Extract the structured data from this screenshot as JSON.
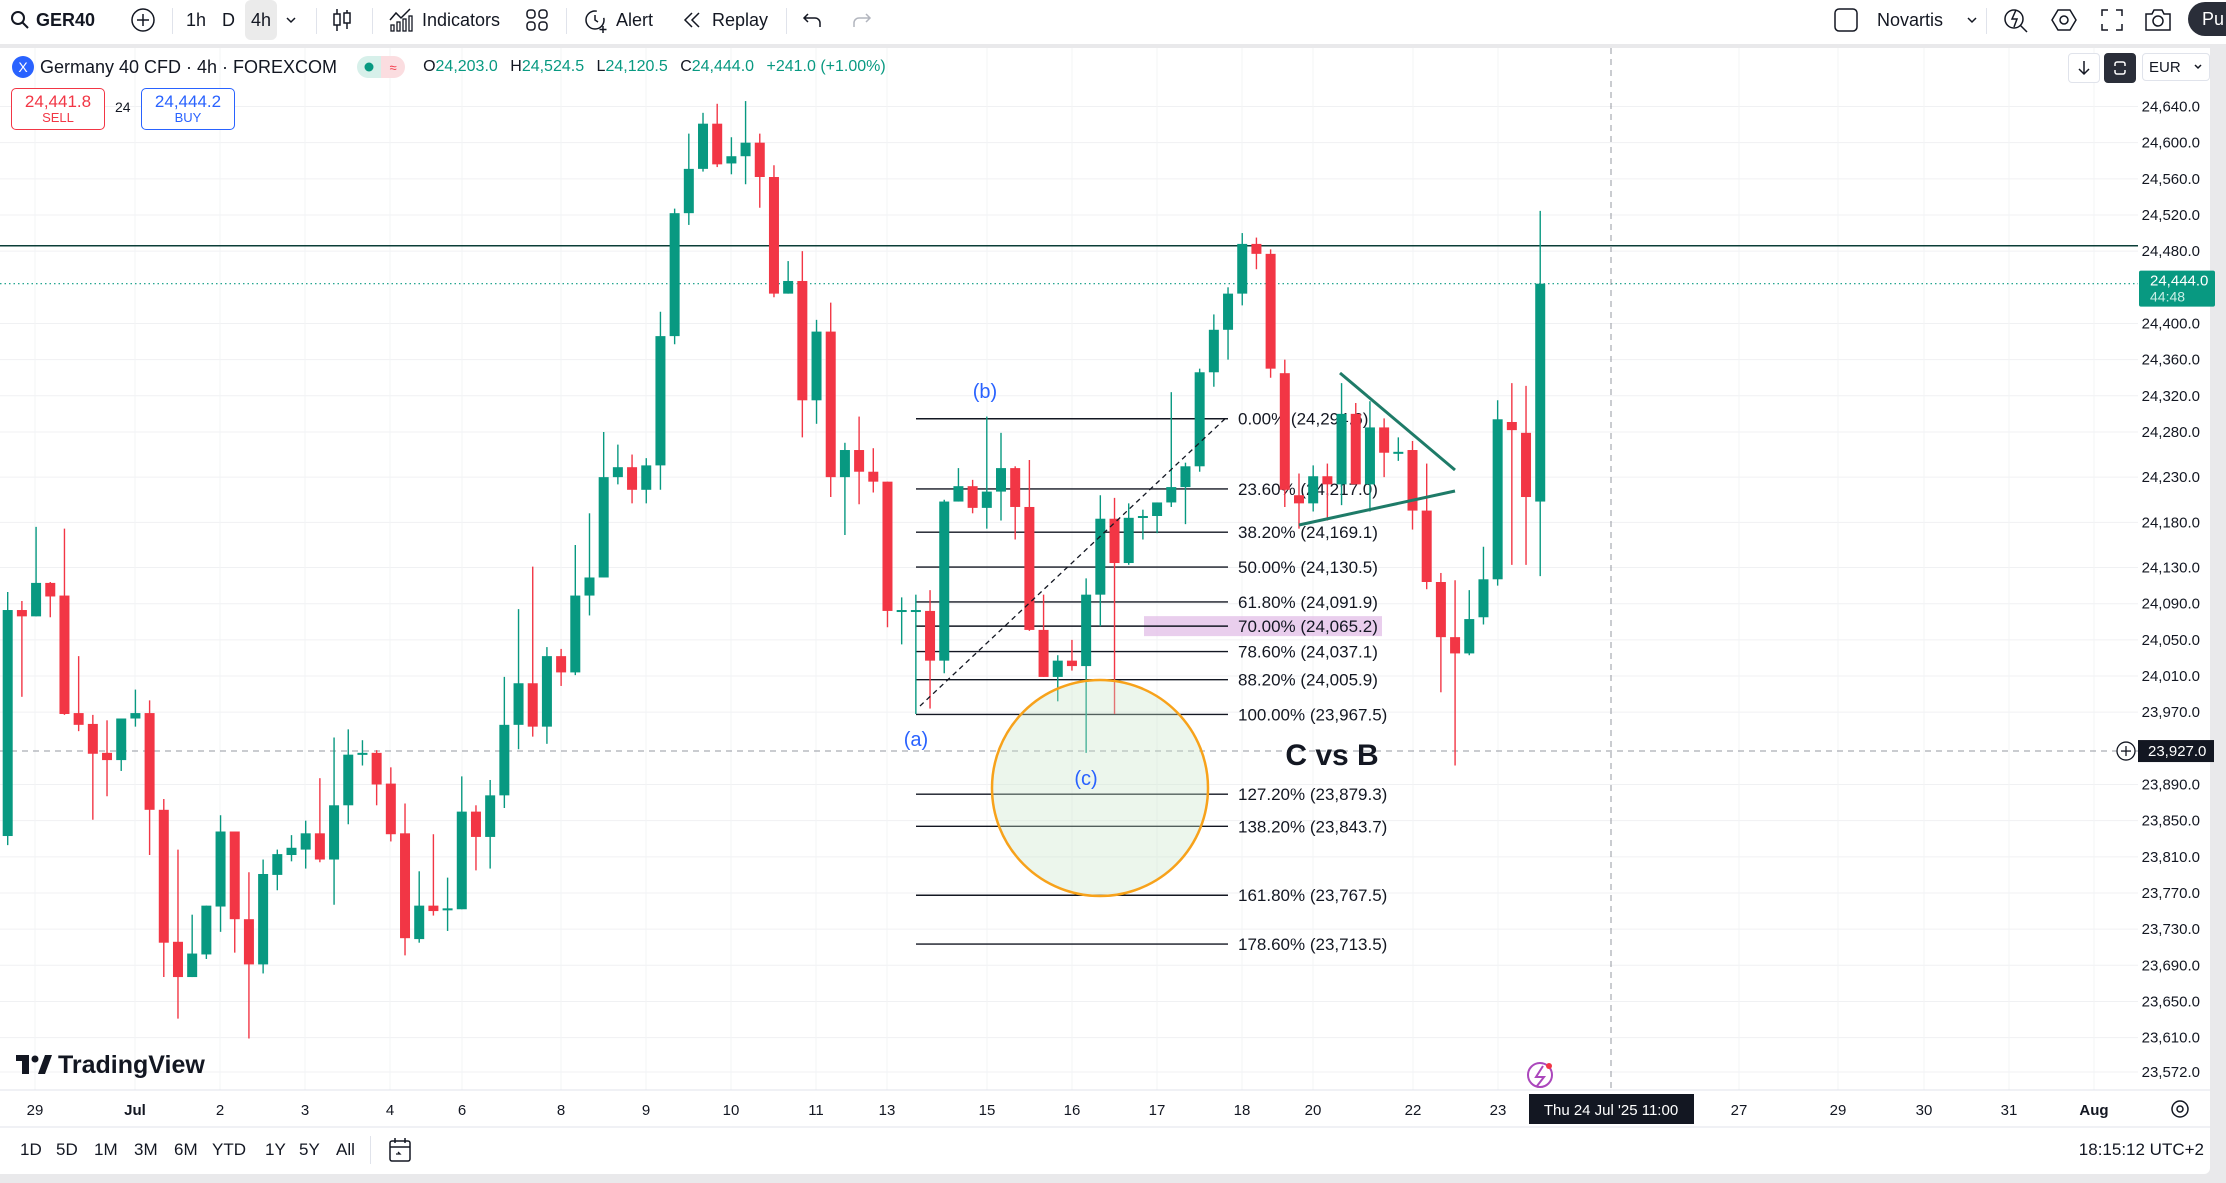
{
  "toolbar": {
    "symbol": "GER40",
    "intervals": [
      "1h",
      "D",
      "4h"
    ],
    "selected_interval": "4h",
    "indicators_label": "Indicators",
    "alert_label": "Alert",
    "replay_label": "Replay",
    "watchlist_label": "Novartis",
    "publish_label": "Pu",
    "icons": [
      "search-icon",
      "add-circle-icon",
      "chevron-down-icon",
      "candles-icon",
      "indicators-icon",
      "layout-grid-icon",
      "alarm-clock-icon",
      "replay-icon",
      "undo-icon",
      "redo-icon",
      "checkbox-icon",
      "quick-search-icon",
      "settings-icon",
      "fullscreen-icon",
      "camera-icon"
    ]
  },
  "legend": {
    "title": "Germany 40 CFD · 4h · FOREXCOM",
    "badge": "X",
    "o_label": "O",
    "o": "24,203.0",
    "h_label": "H",
    "h": "24,524.5",
    "l_label": "L",
    "l": "24,120.5",
    "c_label": "C",
    "c": "24,444.0",
    "change": "+241.0 (+1.00%)",
    "market_pill_icon": "≈"
  },
  "trade": {
    "sell_price": "24,441.8",
    "sell_label": "SELL",
    "spread": "24",
    "buy_price": "24,444.2",
    "buy_label": "BUY"
  },
  "scale_controls": {
    "currency": "EUR"
  },
  "colors": {
    "up": "#089981",
    "down": "#f23645",
    "fib_highlight": "#e1bee7",
    "circle": "#f7a21b",
    "triangle": "#1e7b68",
    "label_blue": "#2962ff"
  },
  "price_axis": {
    "ticks": [
      "24,640.0",
      "24,600.0",
      "24,560.0",
      "24,520.0",
      "24,480.0",
      "24,400.0",
      "24,360.0",
      "24,320.0",
      "24,280.0",
      "24,230.0",
      "24,180.0",
      "24,130.0",
      "24,090.0",
      "24,050.0",
      "24,010.0",
      "23,970.0",
      "23,890.0",
      "23,850.0",
      "23,810.0",
      "23,770.0",
      "23,730.0",
      "23,690.0",
      "23,650.0",
      "23,610.0",
      "23,572.0"
    ],
    "current_price": "24,444.0",
    "countdown": "44:48",
    "crosshair_price": "23,927.0"
  },
  "time_axis": {
    "ticks": [
      "29",
      "Jul",
      "2",
      "3",
      "4",
      "6",
      "8",
      "9",
      "10",
      "11",
      "13",
      "15",
      "16",
      "17",
      "18",
      "20",
      "22",
      "23",
      "27",
      "29",
      "30",
      "31",
      "Aug"
    ],
    "crosshair_time": "Thu 24 Jul '25   11:00"
  },
  "chart_data": {
    "type": "candlestick",
    "ohlc_order": [
      "open",
      "high",
      "low",
      "close"
    ],
    "candles": [
      [
        23833,
        24103,
        23823,
        24083
      ],
      [
        24083,
        24093,
        23987,
        24076
      ],
      [
        24076,
        24175,
        24076,
        24113
      ],
      [
        24113,
        24114,
        24075,
        24098
      ],
      [
        24099,
        24173,
        23967,
        23968
      ],
      [
        23969,
        24032,
        23949,
        23956
      ],
      [
        23957,
        23967,
        23851,
        23924
      ],
      [
        23925,
        23961,
        23877,
        23917
      ],
      [
        23917,
        23963,
        23905,
        23963
      ],
      [
        23963,
        23995,
        23954,
        23969
      ],
      [
        23969,
        23983,
        23812,
        23862
      ],
      [
        23862,
        23874,
        23677,
        23715
      ],
      [
        23716,
        23818,
        23631,
        23677
      ],
      [
        23677,
        23746,
        23677,
        23703
      ],
      [
        23702,
        23756,
        23697,
        23756
      ],
      [
        23755,
        23856,
        23727,
        23838
      ],
      [
        23838,
        23838,
        23704,
        23741
      ],
      [
        23741,
        23793,
        23609,
        23691
      ],
      [
        23691,
        23807,
        23681,
        23791
      ],
      [
        23790,
        23818,
        23773,
        23813
      ],
      [
        23812,
        23834,
        23805,
        23820
      ],
      [
        23818,
        23850,
        23797,
        23836
      ],
      [
        23836,
        23897,
        23804,
        23807
      ],
      [
        23807,
        23942,
        23757,
        23867
      ],
      [
        23867,
        23951,
        23846,
        23923
      ],
      [
        23923,
        23939,
        23911,
        23925
      ],
      [
        23925,
        23928,
        23867,
        23890
      ],
      [
        23891,
        23909,
        23827,
        23835
      ],
      [
        23836,
        23869,
        23701,
        23720
      ],
      [
        23719,
        23794,
        23715,
        23756
      ],
      [
        23756,
        23835,
        23745,
        23750
      ],
      [
        23752,
        23787,
        23728,
        23753
      ],
      [
        23752,
        23899,
        23752,
        23860
      ],
      [
        23860,
        23867,
        23795,
        23832
      ],
      [
        23832,
        23895,
        23797,
        23878
      ],
      [
        23878,
        24009,
        23864,
        23956
      ],
      [
        23956,
        24084,
        23929,
        24002
      ],
      [
        24002,
        24131,
        23943,
        23954
      ],
      [
        23954,
        24042,
        23935,
        24032
      ],
      [
        24032,
        24040,
        23999,
        24014
      ],
      [
        24014,
        24155,
        24011,
        24099
      ],
      [
        24099,
        24190,
        24077,
        24119
      ],
      [
        24119,
        24280,
        24119,
        24230
      ],
      [
        24230,
        24266,
        24222,
        24241
      ],
      [
        24241,
        24255,
        24201,
        24216
      ],
      [
        24216,
        24251,
        24201,
        24243
      ],
      [
        24243,
        24413,
        24216,
        24386
      ],
      [
        24386,
        24527,
        24377,
        24522
      ],
      [
        24522,
        24610,
        24509,
        24571
      ],
      [
        24571,
        24633,
        24568,
        24621
      ],
      [
        24621,
        24643,
        24573,
        24576
      ],
      [
        24577,
        24606,
        24565,
        24585
      ],
      [
        24585,
        24646,
        24554,
        24600
      ],
      [
        24600,
        24610,
        24528,
        24562
      ],
      [
        24562,
        24575,
        24429,
        24433
      ],
      [
        24433,
        24469,
        24433,
        24447
      ],
      [
        24447,
        24480,
        24274,
        24315
      ],
      [
        24315,
        24404,
        24289,
        24391
      ],
      [
        24391,
        24423,
        24208,
        24230
      ],
      [
        24230,
        24268,
        24166,
        24260
      ],
      [
        24260,
        24297,
        24200,
        24236
      ],
      [
        24236,
        24262,
        24213,
        24225
      ],
      [
        24225,
        24225,
        24064,
        24082
      ],
      [
        24082,
        24097,
        24045,
        24083
      ],
      [
        24082,
        24100,
        23968,
        24083
      ],
      [
        24082,
        24105,
        23974,
        24027
      ],
      [
        24027,
        24205,
        24013,
        24203
      ],
      [
        24203,
        24240,
        24203,
        24220
      ],
      [
        24220,
        24227,
        24190,
        24196
      ],
      [
        24196,
        24297,
        24173,
        24214
      ],
      [
        24214,
        24279,
        24182,
        24240
      ],
      [
        24240,
        24242,
        24161,
        24197
      ],
      [
        24197,
        24249,
        24060,
        24061
      ],
      [
        24061,
        24100,
        24009,
        24009
      ],
      [
        24009,
        24033,
        23982,
        24027
      ],
      [
        24027,
        24050,
        24016,
        24021
      ],
      [
        24021,
        24118,
        23925,
        24100
      ],
      [
        24100,
        24210,
        24065,
        24184
      ],
      [
        24184,
        24207,
        23968,
        24135
      ],
      [
        24135,
        24201,
        24133,
        24185
      ],
      [
        24185,
        24194,
        24161,
        24187
      ],
      [
        24187,
        24202,
        24168,
        24202
      ],
      [
        24202,
        24324,
        24197,
        24219
      ],
      [
        24219,
        24246,
        24178,
        24242
      ],
      [
        24242,
        24350,
        24236,
        24346
      ],
      [
        24346,
        24410,
        24330,
        24393
      ],
      [
        24393,
        24440,
        24360,
        24433
      ],
      [
        24433,
        24500,
        24420,
        24488
      ],
      [
        24488,
        24495,
        24460,
        24477
      ],
      [
        24477,
        24482,
        24340,
        24350
      ],
      [
        24345,
        24360,
        24197,
        24216
      ],
      [
        24210,
        24234,
        24173,
        24201
      ],
      [
        24201,
        24243,
        24192,
        24231
      ],
      [
        24231,
        24245,
        24182,
        24222
      ],
      [
        24222,
        24334,
        24199,
        24300
      ],
      [
        24300,
        24312,
        24222,
        24222
      ],
      [
        24222,
        24314,
        24192,
        24285
      ],
      [
        24285,
        24295,
        24230,
        24257
      ],
      [
        24257,
        24274,
        24248,
        24258
      ],
      [
        24260,
        24270,
        24172,
        24193
      ],
      [
        24193,
        24245,
        24106,
        24114
      ],
      [
        24114,
        24124,
        23992,
        24053
      ],
      [
        24053,
        24116,
        23911,
        24035
      ],
      [
        24035,
        24105,
        24033,
        24073
      ],
      [
        24075,
        24153,
        24067,
        24117
      ],
      [
        24117,
        24315,
        24110,
        24294
      ],
      [
        24291,
        24334,
        24133,
        24282
      ],
      [
        24279,
        24331,
        24133,
        24208
      ],
      [
        24203,
        24524.5,
        24120.5,
        24444
      ]
    ],
    "ylim": [
      23560,
      24660
    ],
    "horizontal_line_price": 24486,
    "current_price": 24444,
    "crosshair_price": 23927,
    "fib_levels": [
      {
        "ratio": 0.0,
        "price": 24294.6,
        "label": "0.00% (24,294.6)"
      },
      {
        "ratio": 0.236,
        "price": 24217.0,
        "label": "23.60% (24,217.0)"
      },
      {
        "ratio": 0.382,
        "price": 24169.1,
        "label": "38.20% (24,169.1)"
      },
      {
        "ratio": 0.5,
        "price": 24130.5,
        "label": "50.00% (24,130.5)"
      },
      {
        "ratio": 0.618,
        "price": 24091.9,
        "label": "61.80% (24,091.9)"
      },
      {
        "ratio": 0.7,
        "price": 24065.2,
        "label": "70.00% (24,065.2)",
        "highlight": true
      },
      {
        "ratio": 0.786,
        "price": 24037.1,
        "label": "78.60% (24,037.1)"
      },
      {
        "ratio": 0.882,
        "price": 24005.9,
        "label": "88.20% (24,005.9)"
      },
      {
        "ratio": 1.0,
        "price": 23967.5,
        "label": "100.00% (23,967.5)"
      },
      {
        "ratio": 1.272,
        "price": 23879.3,
        "label": "127.20% (23,879.3)"
      },
      {
        "ratio": 1.382,
        "price": 23843.7,
        "label": "138.20% (23,843.7)"
      },
      {
        "ratio": 1.618,
        "price": 23767.5,
        "label": "161.80% (23,767.5)"
      },
      {
        "ratio": 1.786,
        "price": 23713.5,
        "label": "178.60% (23,713.5)"
      }
    ],
    "wave_labels": [
      "(a)",
      "(b)",
      "(c)"
    ],
    "annotation": "C vs B"
  },
  "logo": "TradingView",
  "bottom": {
    "ranges": [
      "1D",
      "5D",
      "1M",
      "3M",
      "6M",
      "YTD",
      "1Y",
      "5Y",
      "All"
    ],
    "clock": "18:15:12 UTC+2"
  }
}
